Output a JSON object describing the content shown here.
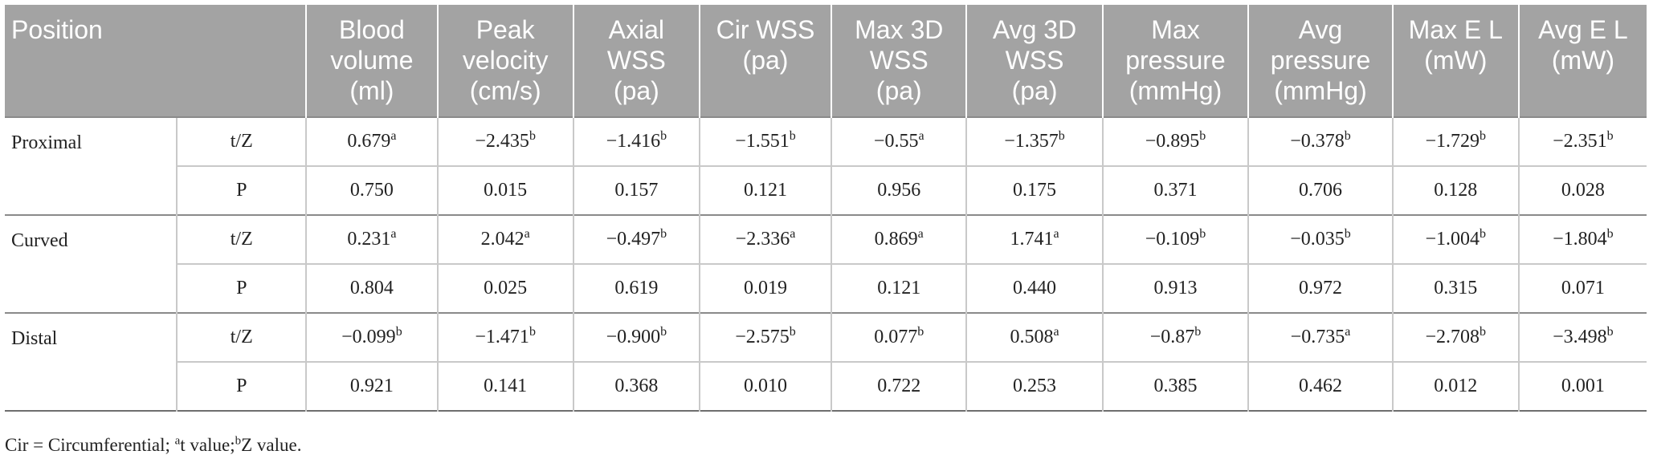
{
  "headers": {
    "position": "Position",
    "columns": [
      [
        "Blood",
        "volume",
        "(ml)"
      ],
      [
        "Peak",
        "velocity",
        "(cm/s)"
      ],
      [
        "Axial",
        "WSS",
        "(pa)"
      ],
      [
        "Cir WSS",
        "(pa)"
      ],
      [
        "Max 3D",
        "WSS",
        "(pa)"
      ],
      [
        "Avg 3D",
        "WSS",
        "(pa)"
      ],
      [
        "Max",
        "pressure",
        "(mmHg)"
      ],
      [
        "Avg",
        "pressure",
        "(mmHg)"
      ],
      [
        "Max E L",
        "(mW)"
      ],
      [
        "Avg E L",
        "(mW)"
      ]
    ]
  },
  "groups": [
    {
      "position": "Proximal",
      "rows": [
        {
          "stat": "t/Z",
          "cells": [
            {
              "v": "0.679",
              "s": "a"
            },
            {
              "v": "−2.435",
              "s": "b"
            },
            {
              "v": "−1.416",
              "s": "b"
            },
            {
              "v": "−1.551",
              "s": "b"
            },
            {
              "v": "−0.55",
              "s": "a"
            },
            {
              "v": "−1.357",
              "s": "b"
            },
            {
              "v": "−0.895",
              "s": "b"
            },
            {
              "v": "−0.378",
              "s": "b"
            },
            {
              "v": "−1.729",
              "s": "b"
            },
            {
              "v": "−2.351",
              "s": "b"
            }
          ]
        },
        {
          "stat": "P",
          "cells": [
            {
              "v": "0.750"
            },
            {
              "v": "0.015"
            },
            {
              "v": "0.157"
            },
            {
              "v": "0.121"
            },
            {
              "v": "0.956"
            },
            {
              "v": "0.175"
            },
            {
              "v": "0.371"
            },
            {
              "v": "0.706"
            },
            {
              "v": "0.128"
            },
            {
              "v": "0.028"
            }
          ]
        }
      ]
    },
    {
      "position": "Curved",
      "rows": [
        {
          "stat": "t/Z",
          "cells": [
            {
              "v": "0.231",
              "s": "a"
            },
            {
              "v": "2.042",
              "s": "a"
            },
            {
              "v": "−0.497",
              "s": "b"
            },
            {
              "v": "−2.336",
              "s": "a"
            },
            {
              "v": "0.869",
              "s": "a"
            },
            {
              "v": "1.741",
              "s": "a"
            },
            {
              "v": "−0.109",
              "s": "b"
            },
            {
              "v": "−0.035",
              "s": "b"
            },
            {
              "v": "−1.004",
              "s": "b"
            },
            {
              "v": "−1.804",
              "s": "b"
            }
          ]
        },
        {
          "stat": "P",
          "cells": [
            {
              "v": "0.804"
            },
            {
              "v": "0.025"
            },
            {
              "v": "0.619"
            },
            {
              "v": "0.019"
            },
            {
              "v": "0.121"
            },
            {
              "v": "0.440"
            },
            {
              "v": "0.913"
            },
            {
              "v": "0.972"
            },
            {
              "v": "0.315"
            },
            {
              "v": "0.071"
            }
          ]
        }
      ]
    },
    {
      "position": "Distal",
      "rows": [
        {
          "stat": "t/Z",
          "cells": [
            {
              "v": "−0.099",
              "s": "b"
            },
            {
              "v": "−1.471",
              "s": "b"
            },
            {
              "v": "−0.900",
              "s": "b"
            },
            {
              "v": "−2.575",
              "s": "b"
            },
            {
              "v": "0.077",
              "s": "b"
            },
            {
              "v": "0.508",
              "s": "a"
            },
            {
              "v": "−0.87",
              "s": "b"
            },
            {
              "v": "−0.735",
              "s": "a"
            },
            {
              "v": "−2.708",
              "s": "b"
            },
            {
              "v": "−3.498",
              "s": "b"
            }
          ]
        },
        {
          "stat": "P",
          "cells": [
            {
              "v": "0.921"
            },
            {
              "v": "0.141"
            },
            {
              "v": "0.368"
            },
            {
              "v": "0.010"
            },
            {
              "v": "0.722"
            },
            {
              "v": "0.253"
            },
            {
              "v": "0.385"
            },
            {
              "v": "0.462"
            },
            {
              "v": "0.012"
            },
            {
              "v": "0.001"
            }
          ]
        }
      ]
    }
  ],
  "footnote": {
    "cir": "Cir = Circumferential;",
    "a_sup": "a",
    "a_text": "t value;",
    "b_sup": "b",
    "b_text": "Z value."
  }
}
